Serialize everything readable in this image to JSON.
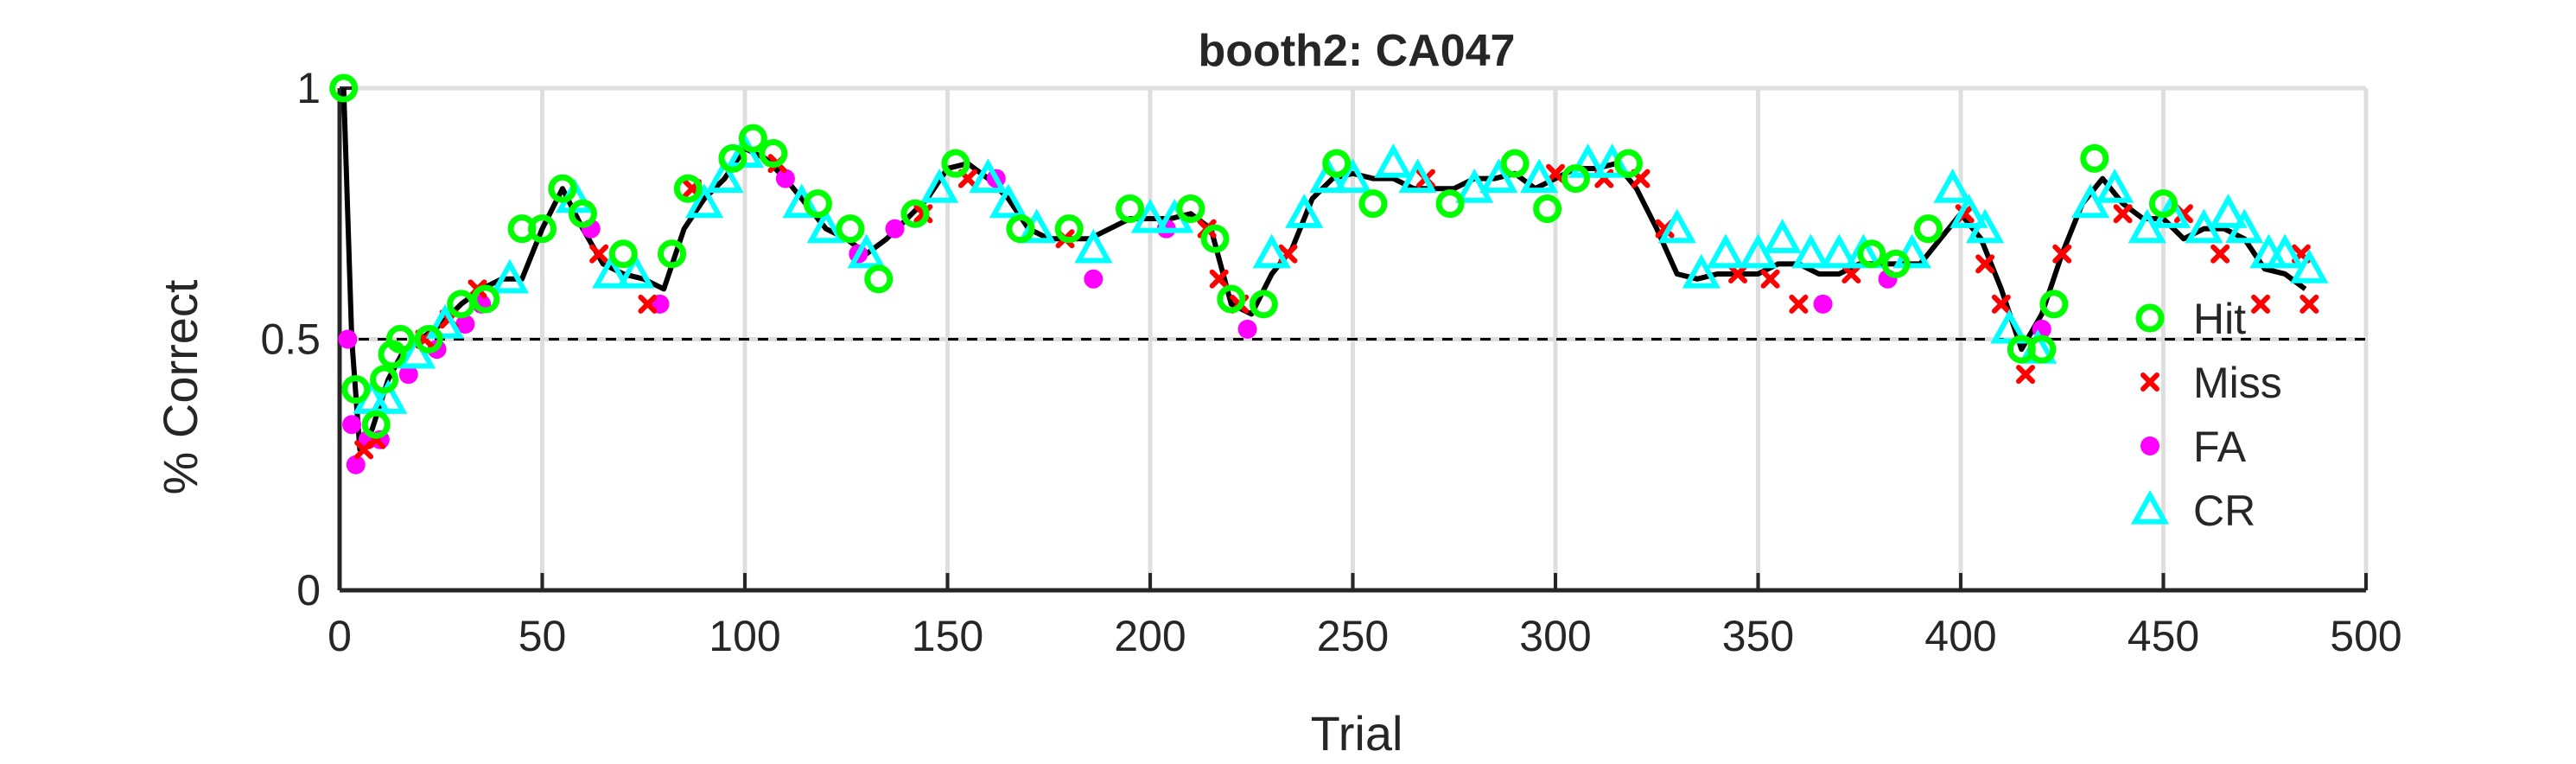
{
  "chart_data": {
    "type": "line",
    "title": "booth2: CA047",
    "xlabel": "Trial",
    "ylabel": "% Correct",
    "xlim": [
      0,
      500
    ],
    "ylim": [
      0,
      1
    ],
    "xticks": [
      0,
      50,
      100,
      150,
      200,
      250,
      300,
      350,
      400,
      450,
      500
    ],
    "xtick_labels": [
      "0",
      "50",
      "100",
      "150",
      "200",
      "250",
      "300",
      "350",
      "400",
      "450",
      "500"
    ],
    "yticks": [
      0,
      0.5,
      1
    ],
    "ytick_labels": [
      "0",
      "0.5",
      "1"
    ],
    "grid": true,
    "legend_position": "right",
    "reference_line": {
      "y": 0.5,
      "style": "dashed"
    },
    "series": [
      {
        "name": "Hit",
        "marker": "circle",
        "color": "#00ff00"
      },
      {
        "name": "Miss",
        "marker": "x",
        "color": "#ff0000"
      },
      {
        "name": "FA",
        "marker": "dot",
        "color": "#ff00ff"
      },
      {
        "name": "CR",
        "marker": "triangle",
        "color": "#00ffff"
      }
    ],
    "performance": {
      "x": [
        1,
        3,
        5,
        8,
        12,
        16,
        20,
        25,
        30,
        35,
        40,
        45,
        50,
        55,
        60,
        65,
        70,
        75,
        80,
        85,
        90,
        95,
        100,
        105,
        110,
        115,
        120,
        125,
        130,
        135,
        140,
        145,
        150,
        155,
        160,
        165,
        170,
        175,
        180,
        185,
        190,
        195,
        200,
        205,
        210,
        215,
        220,
        225,
        230,
        235,
        240,
        245,
        250,
        255,
        260,
        265,
        270,
        275,
        280,
        285,
        290,
        295,
        300,
        305,
        310,
        315,
        320,
        325,
        330,
        335,
        340,
        345,
        350,
        355,
        360,
        365,
        370,
        375,
        380,
        385,
        390,
        395,
        400,
        405,
        410,
        415,
        420,
        425,
        430,
        435,
        440,
        445,
        450,
        455,
        460,
        465,
        470,
        475,
        480,
        485
      ],
      "y": [
        1,
        0.5,
        0.28,
        0.32,
        0.42,
        0.48,
        0.5,
        0.53,
        0.57,
        0.6,
        0.62,
        0.62,
        0.72,
        0.8,
        0.72,
        0.65,
        0.63,
        0.62,
        0.6,
        0.72,
        0.78,
        0.82,
        0.88,
        0.86,
        0.82,
        0.77,
        0.72,
        0.7,
        0.67,
        0.7,
        0.74,
        0.78,
        0.84,
        0.85,
        0.82,
        0.78,
        0.72,
        0.7,
        0.7,
        0.7,
        0.72,
        0.74,
        0.74,
        0.74,
        0.75,
        0.72,
        0.57,
        0.55,
        0.63,
        0.68,
        0.78,
        0.82,
        0.83,
        0.82,
        0.82,
        0.8,
        0.8,
        0.8,
        0.82,
        0.82,
        0.83,
        0.8,
        0.82,
        0.84,
        0.84,
        0.85,
        0.8,
        0.72,
        0.63,
        0.62,
        0.63,
        0.63,
        0.63,
        0.65,
        0.65,
        0.63,
        0.63,
        0.65,
        0.65,
        0.65,
        0.65,
        0.7,
        0.75,
        0.7,
        0.6,
        0.48,
        0.55,
        0.67,
        0.77,
        0.82,
        0.77,
        0.74,
        0.74,
        0.7,
        0.72,
        0.72,
        0.7,
        0.64,
        0.63,
        0.6
      ]
    },
    "markers": {
      "Hit": [
        [
          1,
          1
        ],
        [
          4,
          0.4
        ],
        [
          9,
          0.33
        ],
        [
          11,
          0.42
        ],
        [
          13,
          0.47
        ],
        [
          15,
          0.5
        ],
        [
          22,
          0.5
        ],
        [
          30,
          0.57
        ],
        [
          36,
          0.58
        ],
        [
          45,
          0.72
        ],
        [
          50,
          0.72
        ],
        [
          55,
          0.8
        ],
        [
          60,
          0.75
        ],
        [
          70,
          0.67
        ],
        [
          82,
          0.67
        ],
        [
          86,
          0.8
        ],
        [
          97,
          0.86
        ],
        [
          102,
          0.9
        ],
        [
          107,
          0.87
        ],
        [
          118,
          0.77
        ],
        [
          126,
          0.72
        ],
        [
          133,
          0.62
        ],
        [
          142,
          0.75
        ],
        [
          152,
          0.85
        ],
        [
          168,
          0.72
        ],
        [
          180,
          0.72
        ],
        [
          195,
          0.76
        ],
        [
          210,
          0.76
        ],
        [
          216,
          0.7
        ],
        [
          220,
          0.58
        ],
        [
          228,
          0.57
        ],
        [
          246,
          0.85
        ],
        [
          255,
          0.77
        ],
        [
          274,
          0.77
        ],
        [
          290,
          0.85
        ],
        [
          298,
          0.76
        ],
        [
          305,
          0.82
        ],
        [
          318,
          0.85
        ],
        [
          378,
          0.67
        ],
        [
          384,
          0.65
        ],
        [
          392,
          0.72
        ],
        [
          415,
          0.48
        ],
        [
          420,
          0.48
        ],
        [
          423,
          0.57
        ],
        [
          433,
          0.86
        ],
        [
          450,
          0.77
        ]
      ],
      "Miss": [
        [
          6,
          0.28
        ],
        [
          9,
          0.3
        ],
        [
          21,
          0.5
        ],
        [
          27,
          0.54
        ],
        [
          34,
          0.6
        ],
        [
          64,
          0.67
        ],
        [
          76,
          0.57
        ],
        [
          87,
          0.8
        ],
        [
          108,
          0.85
        ],
        [
          144,
          0.75
        ],
        [
          155,
          0.82
        ],
        [
          179,
          0.7
        ],
        [
          214,
          0.72
        ],
        [
          217,
          0.62
        ],
        [
          222,
          0.57
        ],
        [
          234,
          0.67
        ],
        [
          268,
          0.82
        ],
        [
          300,
          0.83
        ],
        [
          312,
          0.82
        ],
        [
          321,
          0.82
        ],
        [
          327,
          0.72
        ],
        [
          345,
          0.63
        ],
        [
          353,
          0.62
        ],
        [
          360,
          0.57
        ],
        [
          373,
          0.63
        ],
        [
          401,
          0.75
        ],
        [
          406,
          0.65
        ],
        [
          410,
          0.57
        ],
        [
          416,
          0.43
        ],
        [
          425,
          0.67
        ],
        [
          440,
          0.75
        ],
        [
          455,
          0.75
        ],
        [
          464,
          0.67
        ],
        [
          474,
          0.57
        ],
        [
          484,
          0.67
        ],
        [
          486,
          0.57
        ]
      ],
      "FA": [
        [
          2,
          0.5
        ],
        [
          3,
          0.33
        ],
        [
          4,
          0.25
        ],
        [
          7,
          0.3
        ],
        [
          10,
          0.3
        ],
        [
          17,
          0.43
        ],
        [
          24,
          0.48
        ],
        [
          31,
          0.53
        ],
        [
          35,
          0.57
        ],
        [
          62,
          0.72
        ],
        [
          79,
          0.57
        ],
        [
          110,
          0.82
        ],
        [
          128,
          0.67
        ],
        [
          137,
          0.72
        ],
        [
          162,
          0.82
        ],
        [
          186,
          0.62
        ],
        [
          204,
          0.72
        ],
        [
          224,
          0.52
        ],
        [
          366,
          0.57
        ],
        [
          382,
          0.62
        ],
        [
          420,
          0.52
        ]
      ],
      "CR": [
        [
          8,
          0.38
        ],
        [
          12,
          0.38
        ],
        [
          19,
          0.47
        ],
        [
          26,
          0.53
        ],
        [
          42,
          0.62
        ],
        [
          58,
          0.78
        ],
        [
          67,
          0.63
        ],
        [
          73,
          0.63
        ],
        [
          90,
          0.77
        ],
        [
          95,
          0.82
        ],
        [
          100,
          0.87
        ],
        [
          114,
          0.77
        ],
        [
          120,
          0.72
        ],
        [
          130,
          0.67
        ],
        [
          148,
          0.8
        ],
        [
          160,
          0.82
        ],
        [
          165,
          0.77
        ],
        [
          172,
          0.72
        ],
        [
          186,
          0.68
        ],
        [
          200,
          0.74
        ],
        [
          206,
          0.74
        ],
        [
          230,
          0.67
        ],
        [
          238,
          0.75
        ],
        [
          244,
          0.82
        ],
        [
          250,
          0.82
        ],
        [
          260,
          0.85
        ],
        [
          266,
          0.82
        ],
        [
          280,
          0.8
        ],
        [
          286,
          0.82
        ],
        [
          296,
          0.82
        ],
        [
          308,
          0.85
        ],
        [
          314,
          0.85
        ],
        [
          330,
          0.72
        ],
        [
          336,
          0.63
        ],
        [
          342,
          0.67
        ],
        [
          350,
          0.67
        ],
        [
          356,
          0.7
        ],
        [
          363,
          0.67
        ],
        [
          370,
          0.67
        ],
        [
          376,
          0.67
        ],
        [
          388,
          0.67
        ],
        [
          398,
          0.8
        ],
        [
          402,
          0.75
        ],
        [
          406,
          0.72
        ],
        [
          412,
          0.52
        ],
        [
          419,
          0.48
        ],
        [
          432,
          0.77
        ],
        [
          438,
          0.8
        ],
        [
          446,
          0.72
        ],
        [
          452,
          0.75
        ],
        [
          460,
          0.72
        ],
        [
          466,
          0.75
        ],
        [
          470,
          0.72
        ],
        [
          476,
          0.67
        ],
        [
          480,
          0.67
        ],
        [
          486,
          0.64
        ]
      ]
    }
  }
}
